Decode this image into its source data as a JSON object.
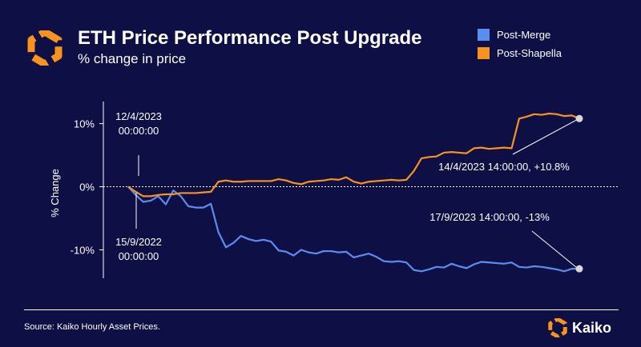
{
  "header": {
    "title": "ETH Price Performance Post Upgrade",
    "subtitle": "% change in price",
    "logo_icon": "kaiko-hexagon-logo-icon"
  },
  "legend": [
    {
      "label": "Post-Merge",
      "color": "#5b8def"
    },
    {
      "label": "Post-Shapella",
      "color": "#f7931e"
    }
  ],
  "footer": {
    "source": "Source: Kaiko Hourly Asset Prices.",
    "brand": "Kaiko"
  },
  "colors": {
    "background": "#0e0f45",
    "post_merge": "#5b8def",
    "post_shapella": "#f7931e",
    "accent": "#f7931e"
  },
  "chart_data": {
    "type": "line",
    "ylabel": "% Change",
    "ylim": [
      -14.5,
      13.5
    ],
    "yticks": [
      10,
      0,
      -10
    ],
    "ytick_labels": [
      "10%",
      "0%",
      "-10%"
    ],
    "zero_line": "dashed",
    "grid": false,
    "legend_position": "top-right",
    "series": [
      {
        "name": "Post-Merge",
        "color": "#5b8def",
        "values": [
          0,
          -1.3,
          -2.4,
          -2.2,
          -1.5,
          -2.8,
          -0.6,
          -1.5,
          -3.1,
          -3.3,
          -3.3,
          -2.7,
          -7.2,
          -9.6,
          -8.9,
          -7.8,
          -8.3,
          -8.6,
          -8.4,
          -8.7,
          -10.1,
          -10.3,
          -10.9,
          -10.0,
          -10.4,
          -10.6,
          -10.2,
          -10.2,
          -10.4,
          -10.3,
          -11.2,
          -10.9,
          -10.6,
          -11.1,
          -11.8,
          -11.9,
          -11.8,
          -12.0,
          -13.2,
          -13.4,
          -13.1,
          -12.7,
          -12.8,
          -12.2,
          -12.6,
          -12.9,
          -12.3,
          -11.9,
          -12.0,
          -12.1,
          -12.2,
          -12.0,
          -12.7,
          -12.8,
          -12.6,
          -12.7,
          -12.9,
          -13.1,
          -13.4,
          -13.0,
          -13.0
        ]
      },
      {
        "name": "Post-Shapella",
        "color": "#f7931e",
        "values": [
          0,
          -0.8,
          -1.5,
          -1.5,
          -1.3,
          -1.2,
          -1.2,
          -1.0,
          -1.0,
          -1.0,
          -0.9,
          -0.8,
          0.8,
          1.0,
          0.8,
          0.8,
          0.9,
          0.9,
          0.9,
          0.9,
          1.2,
          1.0,
          0.6,
          0.4,
          0.8,
          0.9,
          1.0,
          1.2,
          1.1,
          1.5,
          0.8,
          0.5,
          0.8,
          0.9,
          1.0,
          1.1,
          1.0,
          1.1,
          2.5,
          4.5,
          4.7,
          4.8,
          5.4,
          5.5,
          5.4,
          5.3,
          6.1,
          6.2,
          6.0,
          6.1,
          6.2,
          6.1,
          10.8,
          11.1,
          11.5,
          11.4,
          11.6,
          11.5,
          11.2,
          11.3,
          10.8
        ]
      }
    ],
    "annotations": [
      {
        "text": "12/4/2023\n00:00:00",
        "series": "Post-Shapella",
        "point": "start"
      },
      {
        "text": "15/9/2022\n00:00:00",
        "series": "Post-Merge",
        "point": "start"
      },
      {
        "text": "14/4/2023 14:00:00, +10.8%",
        "series": "Post-Shapella",
        "point": "end",
        "value": 10.8
      },
      {
        "text": "17/9/2023 14:00:00, -13%",
        "series": "Post-Merge",
        "point": "end",
        "value": -13
      }
    ]
  }
}
